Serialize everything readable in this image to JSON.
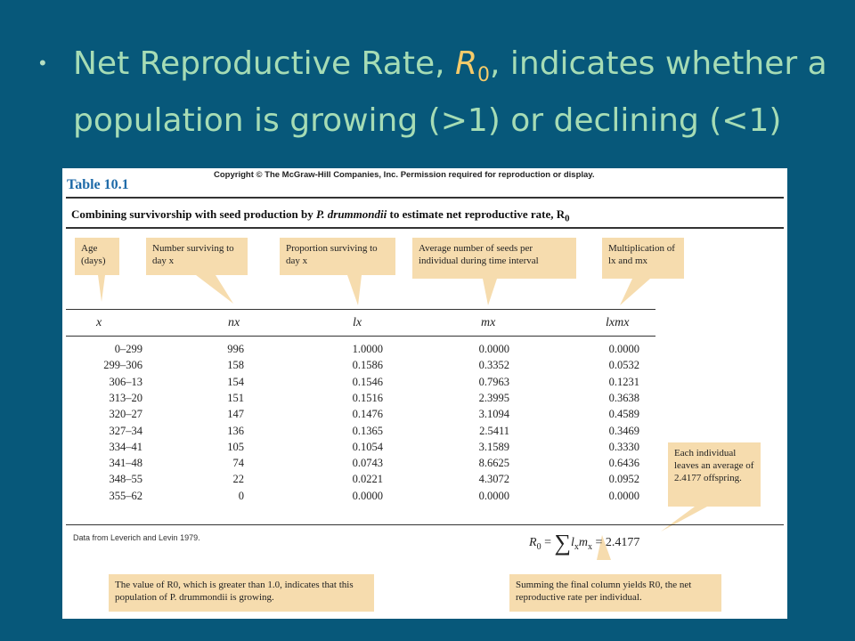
{
  "slide": {
    "headline_prefix": "Net Reproductive Rate, ",
    "headline_symbol": "R",
    "headline_subscript": "0",
    "headline_suffix": ", indicates whether a population is growing (>1) or declining (<1)"
  },
  "figure": {
    "copyright": "Copyright © The McGraw-Hill Companies, Inc. Permission required for reproduction or display.",
    "table_title": "Table 10.1",
    "caption_prefix": "Combining survivorship with seed production by ",
    "caption_species": "P. drummondii",
    "caption_suffix": " to estimate net reproductive rate, R",
    "caption_subscript": "0",
    "notes": {
      "age": "Age (days)",
      "number_surviving": "Number surviving to day x",
      "proportion_surviving": "Proportion surviving to day x",
      "average_seeds": "Average number of seeds per individual during time interval",
      "multiplication": "Multiplication of lx and mx"
    },
    "columns": [
      "x",
      "nx",
      "lx",
      "mx",
      "lxmx"
    ],
    "rows": [
      [
        "0–299",
        "996",
        "1.0000",
        "0.0000",
        "0.0000"
      ],
      [
        "299–306",
        "158",
        "0.1586",
        "0.3352",
        "0.0532"
      ],
      [
        "306–13",
        "154",
        "0.1546",
        "0.7963",
        "0.1231"
      ],
      [
        "313–20",
        "151",
        "0.1516",
        "2.3995",
        "0.3638"
      ],
      [
        "320–27",
        "147",
        "0.1476",
        "3.1094",
        "0.4589"
      ],
      [
        "327–34",
        "136",
        "0.1365",
        "2.5411",
        "0.3469"
      ],
      [
        "334–41",
        "105",
        "0.1054",
        "3.1589",
        "0.3330"
      ],
      [
        "341–48",
        "74",
        "0.0743",
        "8.6625",
        "0.6436"
      ],
      [
        "348–55",
        "22",
        "0.0221",
        "4.3072",
        "0.0952"
      ],
      [
        "355–62",
        "0",
        "0.0000",
        "0.0000",
        "0.0000"
      ]
    ],
    "source": "Data from Leverich and Levin 1979.",
    "formula_value": "= 2.4177",
    "callouts": {
      "offspring": "Each individual leaves an average of 2.4177 offspring.",
      "r0_greater": "The value of R0, which is greater than 1.0, indicates that this population of P. drummondii is growing.",
      "summing": "Summing the final column yields R0, the net reproductive rate per individual."
    }
  },
  "colors": {
    "background": "#07587a",
    "headline": "#a6dcb5",
    "symbol": "#f5cb6a",
    "title_blue": "#1e6aa8",
    "note_fill": "#f6dcae"
  }
}
